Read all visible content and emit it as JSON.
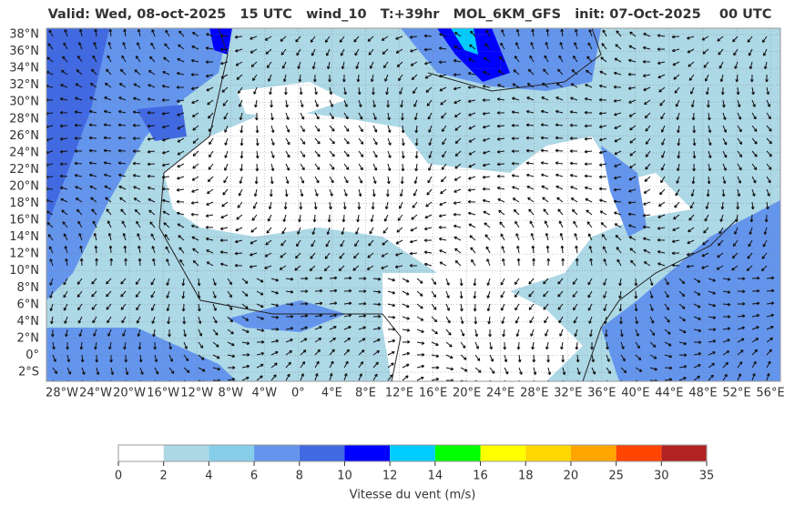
{
  "title": "Valid: Wed, 08-oct-2025   15 UTC   wind_10   T:+39hr   MOL_6KM_GFS   init: 07-Oct-2025    00 UTC",
  "lat_labels": [
    "38°N",
    "36°N",
    "34°N",
    "32°N",
    "30°N",
    "28°N",
    "26°N",
    "24°N",
    "22°N",
    "20°N",
    "18°N",
    "16°N",
    "14°N",
    "12°N",
    "10°N",
    "8°N",
    "6°N",
    "4°N",
    "2°N",
    "0°",
    "2°S"
  ],
  "lon_labels": [
    "28°W",
    "24°W",
    "20°W",
    "16°W",
    "12°W",
    "8°W",
    "4°W",
    "0°",
    "4°E",
    "8°E",
    "12°E",
    "16°E",
    "20°E",
    "24°E",
    "28°E",
    "32°E",
    "36°E",
    "40°E",
    "44°E",
    "48°E",
    "52°E",
    "56°E"
  ],
  "colorbar": {
    "ticks": [
      0,
      2,
      4,
      6,
      8,
      10,
      12,
      14,
      16,
      18,
      20,
      25,
      30,
      35
    ],
    "colors": [
      "#ffffff",
      "#add8e6",
      "#87ceeb",
      "#6495ed",
      "#4169e1",
      "#0000ff",
      "#00ccff",
      "#00ff00",
      "#ffff00",
      "#ffd700",
      "#ffa500",
      "#ff4500",
      "#b22222"
    ],
    "label": "Vitesse du vent (m/s)"
  }
}
